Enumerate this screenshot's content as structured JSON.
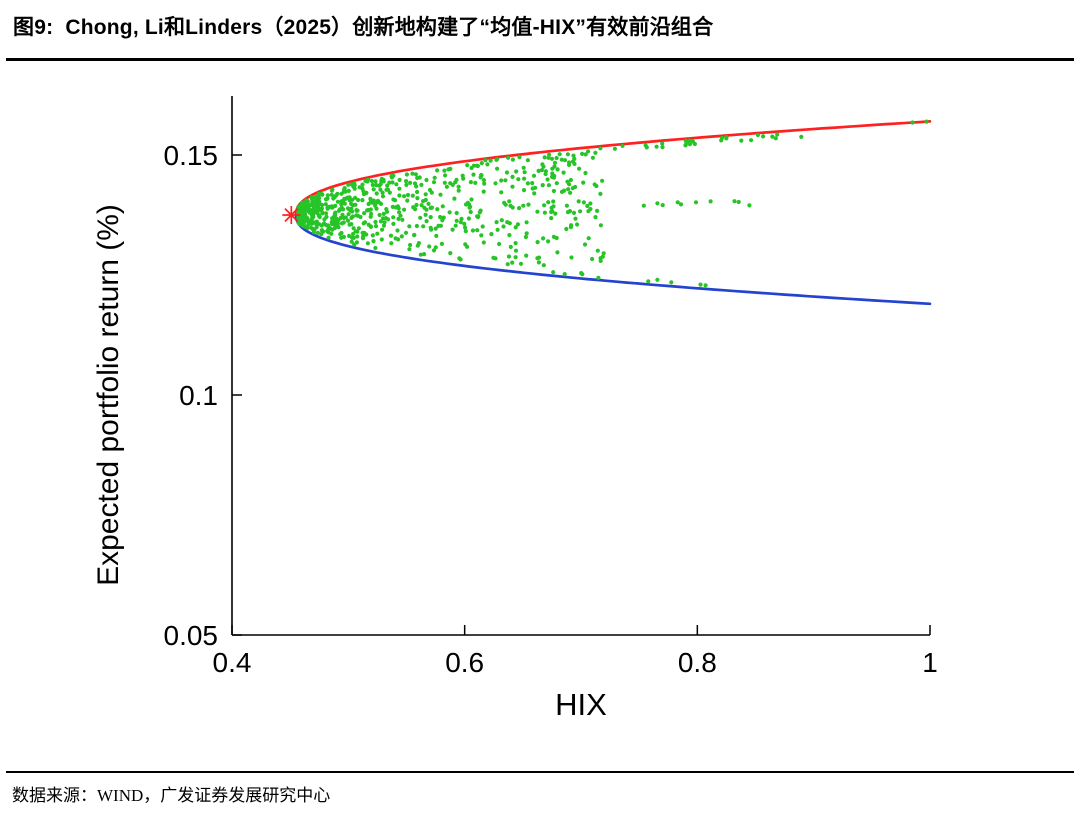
{
  "figure": {
    "title": "图9:  Chong, Li和Linders（2025）创新地构建了“均值-HIX”有效前沿组合",
    "source": "数据来源：WIND，广发证券发展研究中心"
  },
  "chart_data": {
    "type": "scatter",
    "title": "均值-HIX有效前沿组合",
    "xlabel": "HIX",
    "ylabel": "Expected portfolio return (%)",
    "xlim": [
      0.4,
      1.0
    ],
    "ylim": [
      0.05,
      0.158
    ],
    "xticks": [
      {
        "v": 0.4,
        "label": "0.4"
      },
      {
        "v": 0.6,
        "label": "0.6"
      },
      {
        "v": 0.8,
        "label": "0.8"
      },
      {
        "v": 1.0,
        "label": "1"
      }
    ],
    "yticks": [
      {
        "v": 0.05,
        "label": "0.05"
      },
      {
        "v": 0.1,
        "label": "0.1"
      },
      {
        "v": 0.15,
        "label": "0.15"
      }
    ],
    "grid": false,
    "legend": "none",
    "frontier": {
      "vertex": {
        "x": 0.455,
        "y": 0.1375
      },
      "upper_end": {
        "x": 1.0,
        "y": 0.157
      },
      "lower_end": {
        "x": 1.0,
        "y": 0.119
      },
      "exponent": 0.42,
      "upper_color": "#ff2020",
      "lower_color": "#2443cf"
    },
    "scatter": {
      "color": "#27c427",
      "seed": 20250907,
      "cloud_count": 680,
      "cloud_x_max": 0.72,
      "upper_trail_count": 55,
      "upper_trail_x": [
        0.5,
        0.89
      ],
      "mid_trail_count": 12,
      "mid_trail_x": [
        0.63,
        0.875
      ],
      "mid_trail_y": 0.1398,
      "lower_trail_count": 10,
      "lower_trail_x": [
        0.55,
        0.82
      ],
      "end_points_x": [
        0.985,
        0.997
      ]
    },
    "marker": {
      "type": "asterisk",
      "x": 0.451,
      "y": 0.1375,
      "color": "#ff2020"
    }
  }
}
